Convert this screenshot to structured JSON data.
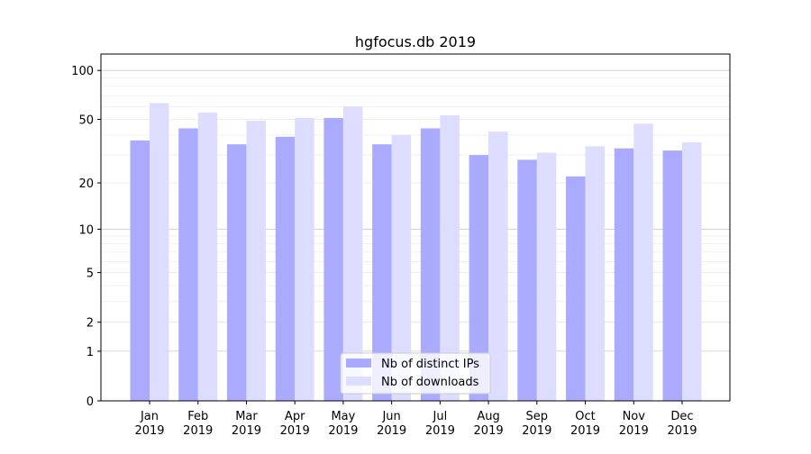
{
  "chart_data": {
    "type": "bar",
    "title": "hgfocus.db 2019",
    "xlabel": "",
    "ylabel": "",
    "yscale": "log(1+y)",
    "ylim": [
      0,
      126
    ],
    "yticks": [
      0,
      1,
      2,
      5,
      10,
      20,
      50,
      100
    ],
    "grid": true,
    "legend_position": "bottom-center",
    "categories": [
      "Jan\n2019",
      "Feb\n2019",
      "Mar\n2019",
      "Apr\n2019",
      "May\n2019",
      "Jun\n2019",
      "Jul\n2019",
      "Aug\n2019",
      "Sep\n2019",
      "Oct\n2019",
      "Nov\n2019",
      "Dec\n2019"
    ],
    "series": [
      {
        "name": "Nb of distinct IPs",
        "color": "#aaaaff",
        "values": [
          37,
          44,
          35,
          39,
          51,
          35,
          44,
          30,
          28,
          22,
          33,
          32
        ]
      },
      {
        "name": "Nb of downloads",
        "color": "#ddddff",
        "values": [
          63,
          55,
          49,
          51,
          60,
          40,
          53,
          42,
          31,
          34,
          47,
          36
        ]
      }
    ]
  }
}
